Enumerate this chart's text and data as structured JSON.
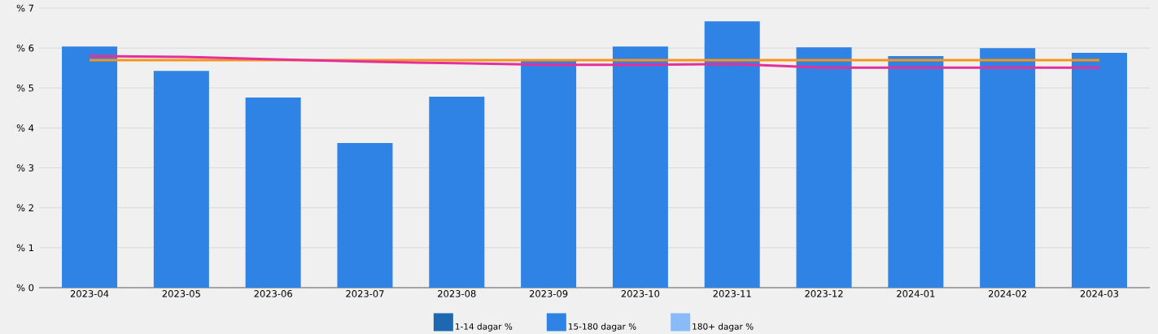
{
  "chart_data": {
    "type": "bar",
    "categories": [
      "2023-04",
      "2023-05",
      "2023-06",
      "2023-07",
      "2023-08",
      "2023-09",
      "2023-10",
      "2023-11",
      "2023-12",
      "2024-01",
      "2024-02",
      "2024-03"
    ],
    "series": [
      {
        "name": "1-14 dagar %",
        "color": "#1d68b0",
        "values": [
          null,
          null,
          null,
          null,
          null,
          null,
          null,
          null,
          null,
          null,
          null,
          null
        ]
      },
      {
        "name": "15-180 dagar %",
        "color": "#2f83e4",
        "values": [
          6.04,
          5.43,
          4.76,
          3.62,
          4.78,
          5.68,
          6.04,
          6.67,
          6.02,
          5.8,
          6.0,
          5.88
        ]
      },
      {
        "name": "180+ dagar %",
        "color": "#88bbf7",
        "values": [
          null,
          null,
          null,
          null,
          null,
          null,
          null,
          null,
          null,
          null,
          null,
          null
        ]
      },
      {
        "type": "line",
        "color": "#f7941d",
        "values": [
          5.7,
          5.7,
          5.7,
          5.7,
          5.7,
          5.7,
          5.7,
          5.7,
          5.7,
          5.7,
          5.7,
          5.7
        ]
      },
      {
        "type": "line",
        "color": "#e5309a",
        "values": [
          5.8,
          5.78,
          5.72,
          5.66,
          5.62,
          5.58,
          5.58,
          5.6,
          5.51,
          5.51,
          5.51,
          5.51
        ]
      }
    ],
    "ylim": [
      0,
      7
    ],
    "yticks": [
      {
        "value": 0,
        "label": "% 0"
      },
      {
        "value": 1,
        "label": "% 1"
      },
      {
        "value": 2,
        "label": "% 2"
      },
      {
        "value": 3,
        "label": "% 3"
      },
      {
        "value": 4,
        "label": "% 4"
      },
      {
        "value": 5,
        "label": "% 5"
      },
      {
        "value": 6,
        "label": "% 6"
      },
      {
        "value": 7,
        "label": "% 7"
      }
    ],
    "grid": "y",
    "legend": "bottom"
  }
}
